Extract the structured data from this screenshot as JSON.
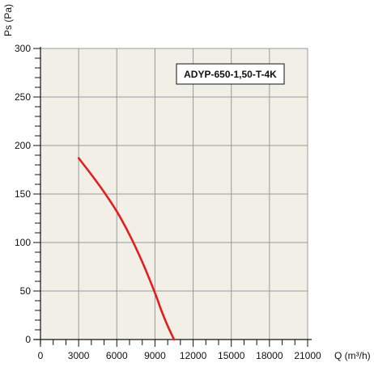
{
  "chart_data": {
    "type": "line",
    "title": "",
    "xlabel": "Q (m³/h)",
    "ylabel": "Ps (Pa)",
    "xlim": [
      0,
      21000
    ],
    "ylim": [
      0,
      300
    ],
    "x_ticks": [
      0,
      3000,
      6000,
      9000,
      12000,
      15000,
      18000,
      21000
    ],
    "x_tick_labels": [
      "0",
      "3000",
      "6000",
      "9000",
      "12000",
      "15000",
      "18000",
      "21000"
    ],
    "y_ticks": [
      0,
      50,
      100,
      150,
      200,
      250,
      300
    ],
    "y_tick_labels": [
      "0",
      "50",
      "100",
      "150",
      "200",
      "250",
      "300"
    ],
    "grid": true,
    "legend": "none",
    "annotation": "ADYP-650-1,50-T-4K",
    "series": [
      {
        "color": "#e02020",
        "x": [
          3000,
          4000,
          5000,
          6000,
          7000,
          8000,
          9000,
          9500,
          10000,
          10500
        ],
        "y": [
          187,
          170,
          152,
          132,
          108,
          80,
          48,
          30,
          14,
          0
        ]
      }
    ],
    "colors": {
      "plot_background": "#f1efe6",
      "grid": "#9a9a9a",
      "axis": "#111111",
      "curve": "#e02020"
    }
  }
}
